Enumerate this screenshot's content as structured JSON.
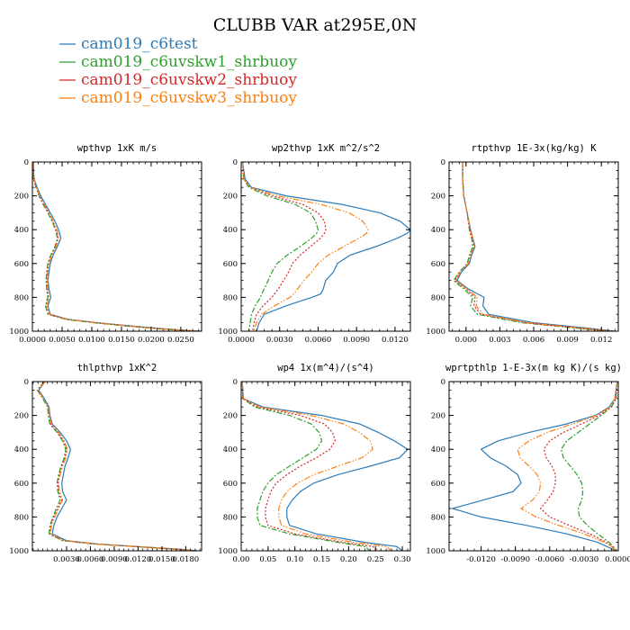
{
  "title": "CLUBB VAR at295E,0N",
  "legend": [
    {
      "name": "cam019_c6test",
      "color": "#2b7bb9"
    },
    {
      "name": "cam019_c6uvskw1_shrbuoy",
      "color": "#2ca02c"
    },
    {
      "name": "cam019_c6uvskw2_shrbuoy",
      "color": "#d62728"
    },
    {
      "name": "cam019_c6uvskw3_shrbuoy",
      "color": "#ff7f0e"
    }
  ],
  "chart_data": [
    {
      "type": "line",
      "title": "wpthvp  1xK m/s",
      "xlim": [
        0,
        0.0285
      ],
      "ylim": [
        1000,
        0
      ],
      "xticks": [
        0,
        0.005,
        0.01,
        0.015,
        0.02,
        0.025
      ],
      "xtick_labels": [
        "0.0000",
        "0.0050",
        "0.0100",
        "0.0150",
        "0.0200",
        "0.0250"
      ],
      "yticks": [
        0,
        200,
        400,
        600,
        800,
        1000
      ],
      "ytick_labels": [
        "0",
        "200",
        "400",
        "600",
        "800",
        "1000"
      ],
      "y": [
        0,
        50,
        100,
        150,
        200,
        250,
        300,
        350,
        400,
        450,
        500,
        550,
        600,
        650,
        700,
        750,
        800,
        850,
        900,
        930,
        950,
        970,
        985,
        995,
        1000
      ],
      "series": [
        {
          "name": "cam019_c6test",
          "x": [
            0.0002,
            0.0002,
            0.0003,
            0.0008,
            0.0014,
            0.0022,
            0.003,
            0.0038,
            0.0044,
            0.0048,
            0.0042,
            0.0035,
            0.003,
            0.0028,
            0.0026,
            0.0028,
            0.0031,
            0.0026,
            0.003,
            0.006,
            0.011,
            0.017,
            0.022,
            0.026,
            0.0285
          ]
        },
        {
          "name": "cam019_c6uvskw1_shrbuoy",
          "x": [
            0.0001,
            0.0001,
            0.0002,
            0.0006,
            0.0011,
            0.0018,
            0.0026,
            0.0033,
            0.0039,
            0.0042,
            0.0038,
            0.0031,
            0.0026,
            0.0024,
            0.0023,
            0.0024,
            0.0026,
            0.0022,
            0.0026,
            0.0056,
            0.0104,
            0.016,
            0.021,
            0.025,
            0.0275
          ]
        },
        {
          "name": "cam019_c6uvskw2_shrbuoy",
          "x": [
            0.0001,
            0.0001,
            0.0002,
            0.0006,
            0.0012,
            0.0019,
            0.0027,
            0.0034,
            0.004,
            0.0043,
            0.0039,
            0.0032,
            0.0027,
            0.0025,
            0.0024,
            0.0025,
            0.0027,
            0.0023,
            0.0027,
            0.0057,
            0.0106,
            0.0162,
            0.0212,
            0.0252,
            0.0278
          ]
        },
        {
          "name": "cam019_c6uvskw3_shrbuoy",
          "x": [
            0.0001,
            0.0001,
            0.0003,
            0.0007,
            0.0012,
            0.002,
            0.0028,
            0.0035,
            0.0041,
            0.0044,
            0.004,
            0.0033,
            0.0028,
            0.0026,
            0.0025,
            0.0026,
            0.0028,
            0.0024,
            0.0028,
            0.0058,
            0.0107,
            0.0164,
            0.0214,
            0.0254,
            0.028
          ]
        }
      ]
    },
    {
      "type": "line",
      "title": "wp2thvp  1xK m^2/s^2",
      "xlim": [
        0,
        0.0132
      ],
      "ylim": [
        1000,
        0
      ],
      "xticks": [
        0,
        0.003,
        0.006,
        0.009,
        0.012
      ],
      "xtick_labels": [
        "0.0000",
        "0.0030",
        "0.0060",
        "0.0090",
        "0.0120"
      ],
      "yticks": [
        0,
        200,
        400,
        600,
        800,
        1000
      ],
      "ytick_labels": [
        "0",
        "200",
        "400",
        "600",
        "800",
        "1000"
      ],
      "y": [
        0,
        100,
        150,
        200,
        250,
        300,
        350,
        400,
        420,
        450,
        500,
        550,
        600,
        650,
        700,
        750,
        780,
        800,
        850,
        900,
        950,
        1000
      ],
      "series": [
        {
          "name": "cam019_c6test",
          "x": [
            0.0001,
            0.0003,
            0.0008,
            0.0035,
            0.0078,
            0.0108,
            0.0124,
            0.0132,
            0.013,
            0.0122,
            0.0105,
            0.0085,
            0.0075,
            0.0072,
            0.0066,
            0.0064,
            0.0062,
            0.0055,
            0.0035,
            0.0018,
            0.0014,
            0.0012
          ]
        },
        {
          "name": "cam019_c6uvskw1_shrbuoy",
          "x": [
            0.0001,
            0.0002,
            0.0006,
            0.002,
            0.0042,
            0.0054,
            0.0058,
            0.006,
            0.0059,
            0.0055,
            0.0046,
            0.0036,
            0.0028,
            0.0024,
            0.0021,
            0.0018,
            0.0016,
            0.0015,
            0.0011,
            0.0008,
            0.0007,
            0.0006
          ]
        },
        {
          "name": "cam019_c6uvskw2_shrbuoy",
          "x": [
            0.0001,
            0.0002,
            0.0007,
            0.0024,
            0.0048,
            0.006,
            0.0065,
            0.0066,
            0.0065,
            0.0062,
            0.0054,
            0.0046,
            0.004,
            0.0037,
            0.0033,
            0.0029,
            0.0026,
            0.0024,
            0.0017,
            0.0012,
            0.001,
            0.0009
          ]
        },
        {
          "name": "cam019_c6uvskw3_shrbuoy",
          "x": [
            0.0001,
            0.0002,
            0.0007,
            0.0028,
            0.0062,
            0.0084,
            0.0095,
            0.0099,
            0.0098,
            0.0092,
            0.008,
            0.0068,
            0.006,
            0.0055,
            0.0049,
            0.0044,
            0.0041,
            0.0038,
            0.0026,
            0.0016,
            0.0012,
            0.001
          ]
        }
      ]
    },
    {
      "type": "line",
      "title": "rtpthvp  1E-3x(kg/kg) K",
      "xlim": [
        -0.0015,
        0.0135
      ],
      "ylim": [
        1000,
        0
      ],
      "xticks": [
        0,
        0.003,
        0.006,
        0.009,
        0.012
      ],
      "xtick_labels": [
        "0.000",
        "0.003",
        "0.006",
        "0.009",
        "0.012"
      ],
      "yticks": [
        0,
        200,
        400,
        600,
        800,
        1000
      ],
      "ytick_labels": [
        "0",
        "200",
        "400",
        "600",
        "800",
        "1000"
      ],
      "y": [
        0,
        100,
        200,
        300,
        400,
        450,
        500,
        550,
        600,
        650,
        700,
        750,
        800,
        850,
        900,
        950,
        980,
        1000
      ],
      "series": [
        {
          "name": "cam019_c6test",
          "x": [
            -0.0003,
            -0.0003,
            -0.0002,
            0.0001,
            0.0004,
            0.0006,
            0.0008,
            0.0005,
            0.0003,
            -0.0004,
            -0.0008,
            0.0002,
            0.0016,
            0.0015,
            0.002,
            0.006,
            0.0105,
            0.0132
          ]
        },
        {
          "name": "cam019_c6uvskw1_shrbuoy",
          "x": [
            -0.0003,
            -0.0003,
            -0.0002,
            0.0001,
            0.0003,
            0.0005,
            0.0006,
            0.0003,
            0.0001,
            -0.0006,
            -0.0011,
            -0.0002,
            0.0006,
            0.0004,
            0.001,
            0.005,
            0.0095,
            0.0125
          ]
        },
        {
          "name": "cam019_c6uvskw2_shrbuoy",
          "x": [
            -0.0003,
            -0.0003,
            -0.0002,
            0.0001,
            0.0003,
            0.0005,
            0.0007,
            0.0004,
            0.0002,
            -0.0005,
            -0.001,
            0,
            0.0008,
            0.0007,
            0.0013,
            0.0053,
            0.0098,
            0.0127
          ]
        },
        {
          "name": "cam019_c6uvskw3_shrbuoy",
          "x": [
            -0.0003,
            -0.0003,
            -0.0002,
            0.0001,
            0.0004,
            0.0006,
            0.0007,
            0.0004,
            0.0002,
            -0.0005,
            -0.0009,
            0.0001,
            0.001,
            0.0009,
            0.0015,
            0.0055,
            0.01,
            0.0129
          ]
        }
      ]
    },
    {
      "type": "line",
      "title": "thlpthvp  1xK^2",
      "xlim": [
        -0.0013,
        0.02
      ],
      "ylim": [
        1000,
        0
      ],
      "xticks": [
        0.003,
        0.006,
        0.009,
        0.012,
        0.015,
        0.018
      ],
      "xtick_labels": [
        "0.0030",
        "0.0060",
        "0.0090",
        "0.0120",
        "0.0150",
        "0.0180"
      ],
      "yticks": [
        0,
        200,
        400,
        600,
        800,
        1000
      ],
      "ytick_labels": [
        "0",
        "200",
        "400",
        "600",
        "800",
        "1000"
      ],
      "y": [
        0,
        50,
        100,
        150,
        200,
        250,
        300,
        350,
        400,
        450,
        500,
        550,
        600,
        650,
        700,
        750,
        800,
        850,
        900,
        940,
        960,
        975,
        990,
        1000
      ],
      "series": [
        {
          "name": "cam019_c6test",
          "x": [
            0.0003,
            -0.0005,
            0.0002,
            0.0008,
            0.0009,
            0.0012,
            0.0022,
            0.003,
            0.0035,
            0.0032,
            0.0028,
            0.0026,
            0.0024,
            0.0025,
            0.003,
            0.0024,
            0.0018,
            0.0014,
            0.0012,
            0.003,
            0.007,
            0.012,
            0.017,
            0.0195
          ]
        },
        {
          "name": "cam019_c6uvskw1_shrbuoy",
          "x": [
            0.0002,
            -0.0007,
            0,
            0.0006,
            0.0007,
            0.0009,
            0.0018,
            0.0025,
            0.0029,
            0.0027,
            0.0023,
            0.002,
            0.0018,
            0.0019,
            0.0022,
            0.0017,
            0.0013,
            0.0009,
            0.0008,
            0.0025,
            0.0065,
            0.0115,
            0.0165,
            0.019
          ]
        },
        {
          "name": "cam019_c6uvskw2_shrbuoy",
          "x": [
            0.0002,
            -0.0006,
            0.0001,
            0.0007,
            0.0008,
            0.001,
            0.0019,
            0.0026,
            0.003,
            0.0028,
            0.0024,
            0.0021,
            0.0019,
            0.002,
            0.0024,
            0.0019,
            0.0014,
            0.001,
            0.0009,
            0.0026,
            0.0066,
            0.0116,
            0.0166,
            0.0191
          ]
        },
        {
          "name": "cam019_c6uvskw3_shrbuoy",
          "x": [
            0.0003,
            -0.0006,
            0.0001,
            0.0007,
            0.0008,
            0.0011,
            0.002,
            0.0027,
            0.0031,
            0.0029,
            0.0025,
            0.0022,
            0.002,
            0.0021,
            0.0025,
            0.002,
            0.0015,
            0.0011,
            0.001,
            0.0027,
            0.0067,
            0.0117,
            0.0167,
            0.0192
          ]
        }
      ]
    },
    {
      "type": "line",
      "title": "wp4  1x(m^4)/(s^4)",
      "xlim": [
        0,
        0.315
      ],
      "ylim": [
        1000,
        0
      ],
      "xticks": [
        0,
        0.05,
        0.1,
        0.15,
        0.2,
        0.25,
        0.3
      ],
      "xtick_labels": [
        "0.00",
        "0.05",
        "0.10",
        "0.15",
        "0.20",
        "0.25",
        "0.30"
      ],
      "yticks": [
        0,
        200,
        400,
        600,
        800,
        1000
      ],
      "ytick_labels": [
        "0",
        "200",
        "400",
        "600",
        "800",
        "1000"
      ],
      "y": [
        0,
        100,
        150,
        200,
        250,
        300,
        350,
        400,
        450,
        500,
        550,
        600,
        650,
        700,
        750,
        800,
        850,
        900,
        950,
        975,
        1000
      ],
      "series": [
        {
          "name": "cam019_c6test",
          "x": [
            0.002,
            0.004,
            0.04,
            0.15,
            0.22,
            0.255,
            0.285,
            0.31,
            0.295,
            0.24,
            0.18,
            0.135,
            0.11,
            0.095,
            0.085,
            0.085,
            0.09,
            0.14,
            0.23,
            0.29,
            0.3
          ]
        },
        {
          "name": "cam019_c6uvskw1_shrbuoy",
          "x": [
            0.002,
            0.003,
            0.025,
            0.09,
            0.13,
            0.145,
            0.15,
            0.14,
            0.115,
            0.09,
            0.065,
            0.05,
            0.04,
            0.035,
            0.03,
            0.03,
            0.035,
            0.09,
            0.18,
            0.23,
            0.24
          ]
        },
        {
          "name": "cam019_c6uvskw2_shrbuoy",
          "x": [
            0.002,
            0.003,
            0.03,
            0.11,
            0.155,
            0.17,
            0.175,
            0.165,
            0.14,
            0.11,
            0.085,
            0.065,
            0.055,
            0.05,
            0.045,
            0.045,
            0.05,
            0.1,
            0.19,
            0.245,
            0.255
          ]
        },
        {
          "name": "cam019_c6uvskw3_shrbuoy",
          "x": [
            0.002,
            0.004,
            0.035,
            0.13,
            0.19,
            0.22,
            0.24,
            0.245,
            0.225,
            0.18,
            0.135,
            0.105,
            0.085,
            0.075,
            0.07,
            0.07,
            0.075,
            0.12,
            0.21,
            0.27,
            0.28
          ]
        }
      ]
    },
    {
      "type": "line",
      "title": "wprtpthlp  1-E-3x(m kg K)/(s kg)",
      "xlim": [
        -0.0148,
        0
      ],
      "ylim": [
        1000,
        0
      ],
      "xticks": [
        -0.012,
        -0.009,
        -0.006,
        -0.003,
        0
      ],
      "xtick_labels": [
        "-0.0120",
        "-0.0090",
        "-0.0060",
        "-0.0030",
        "0.0000"
      ],
      "yticks": [
        0,
        200,
        400,
        600,
        800,
        1000
      ],
      "ytick_labels": [
        "0",
        "200",
        "400",
        "600",
        "800",
        "1000"
      ],
      "y": [
        0,
        100,
        150,
        200,
        250,
        300,
        350,
        400,
        450,
        500,
        550,
        600,
        650,
        700,
        750,
        800,
        850,
        900,
        950,
        1000
      ],
      "series": [
        {
          "name": "cam019_c6test",
          "x": [
            -0.0001,
            -0.0003,
            -0.0008,
            -0.002,
            -0.0045,
            -0.0078,
            -0.0105,
            -0.012,
            -0.0112,
            -0.0098,
            -0.0088,
            -0.0085,
            -0.0092,
            -0.0118,
            -0.0145,
            -0.012,
            -0.008,
            -0.0045,
            -0.0018,
            -0.0002
          ]
        },
        {
          "name": "cam019_c6uvskw1_shrbuoy",
          "x": [
            -0.0001,
            -0.0002,
            -0.0006,
            -0.0015,
            -0.0025,
            -0.0035,
            -0.0045,
            -0.005,
            -0.0048,
            -0.0042,
            -0.0036,
            -0.0032,
            -0.0031,
            -0.0032,
            -0.0035,
            -0.0034,
            -0.0027,
            -0.0018,
            -0.0008,
            -0.0001
          ]
        },
        {
          "name": "cam019_c6uvskw2_shrbuoy",
          "x": [
            -0.0001,
            -0.0002,
            -0.0006,
            -0.0017,
            -0.0032,
            -0.0048,
            -0.006,
            -0.0065,
            -0.0063,
            -0.0058,
            -0.0055,
            -0.0055,
            -0.0057,
            -0.0062,
            -0.0068,
            -0.006,
            -0.0043,
            -0.0025,
            -0.001,
            -0.0001
          ]
        },
        {
          "name": "cam019_c6uvskw3_shrbuoy",
          "x": [
            -0.0001,
            -0.0003,
            -0.0007,
            -0.0019,
            -0.004,
            -0.0062,
            -0.0078,
            -0.0088,
            -0.0086,
            -0.0078,
            -0.0071,
            -0.0068,
            -0.0069,
            -0.0075,
            -0.0085,
            -0.0072,
            -0.0052,
            -0.003,
            -0.0012,
            -0.0001
          ]
        }
      ]
    }
  ]
}
